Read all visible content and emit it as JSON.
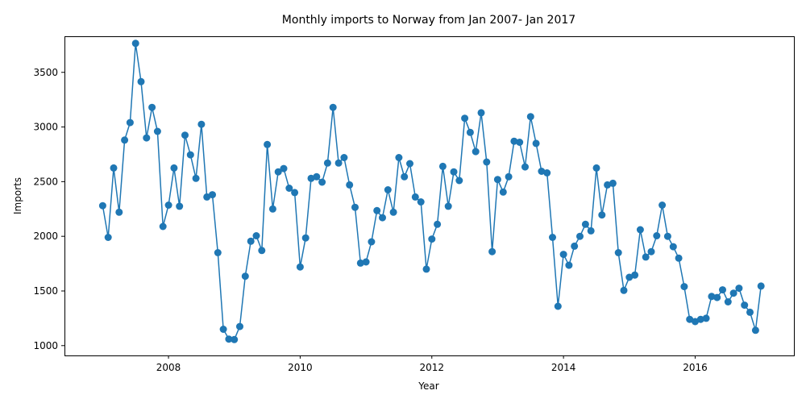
{
  "chart_data": {
    "type": "line",
    "title": "Monthly imports to Norway from Jan 2007- Jan 2017",
    "xlabel": "Year",
    "ylabel": "Imports",
    "xlim": [
      2006.42,
      2017.5
    ],
    "ylim": [
      910,
      3830
    ],
    "x_ticks": [
      2008,
      2010,
      2012,
      2014,
      2016
    ],
    "y_ticks": [
      1000,
      1500,
      2000,
      2500,
      3000,
      3500
    ],
    "grid": false,
    "color": "#1f77b4",
    "marker": "circle",
    "start": "2007-01",
    "end": "2017-01",
    "series": [
      {
        "values": [
          2280,
          1990,
          2625,
          2220,
          2880,
          3040,
          3765,
          3415,
          2900,
          3180,
          2960,
          2090,
          2285,
          2625,
          2275,
          2925,
          2745,
          2530,
          3025,
          2360,
          2380,
          1850,
          1150,
          1060,
          1055,
          1175,
          1635,
          1955,
          2005,
          1870,
          2840,
          2250,
          2590,
          2620,
          2440,
          2400,
          1720,
          1985,
          2530,
          2545,
          2495,
          2670,
          3180,
          2670,
          2720,
          2470,
          2265,
          1755,
          1765,
          1950,
          2235,
          2170,
          2425,
          2220,
          2720,
          2545,
          2665,
          2360,
          2315,
          1700,
          1975,
          2110,
          2640,
          2275,
          2590,
          2510,
          3080,
          2950,
          2775,
          3130,
          2680,
          1860,
          2520,
          2405,
          2545,
          2870,
          2860,
          2635,
          3095,
          2850,
          2595,
          2580,
          1990,
          1360,
          1835,
          1735,
          1910,
          2000,
          2110,
          2050,
          2625,
          2195,
          2470,
          2485,
          1850,
          1505,
          1625,
          1645,
          2060,
          1810,
          1860,
          2005,
          2285,
          2000,
          1905,
          1800,
          1540,
          1240,
          1220,
          1240,
          1250,
          1450,
          1440,
          1510,
          1400,
          1480,
          1525,
          1370,
          1305,
          1140,
          1545
        ]
      }
    ]
  }
}
